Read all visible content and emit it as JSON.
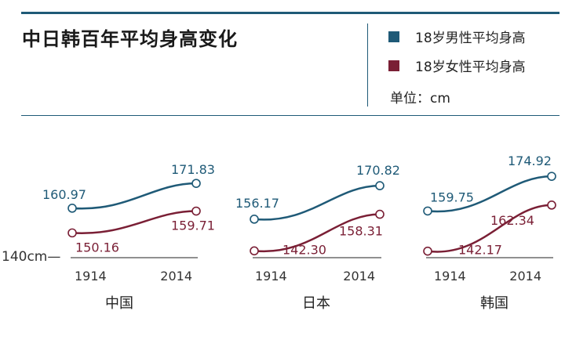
{
  "header": {
    "title": "中日韩百年平均身高变化",
    "legend": [
      {
        "label": "18岁男性平均身高",
        "color": "#1f5a77"
      },
      {
        "label": "18岁女性平均身高",
        "color": "#7a1f35"
      }
    ],
    "unit": "单位：cm"
  },
  "chart_data": {
    "type": "line",
    "title": "中日韩百年平均身高变化",
    "baseline_label": "140cm—",
    "ylim": [
      140,
      176
    ],
    "x": [
      1914,
      2014
    ],
    "x_tick_labels": [
      "1914",
      "2014"
    ],
    "panels": [
      {
        "country": "中国",
        "series": [
          {
            "name": "18岁男性平均身高",
            "values": [
              160.97,
              171.83
            ],
            "labels": [
              "160.97",
              "171.83"
            ]
          },
          {
            "name": "18岁女性平均身高",
            "values": [
              150.16,
              159.71
            ],
            "labels": [
              "150.16",
              "159.71"
            ]
          }
        ]
      },
      {
        "country": "日本",
        "series": [
          {
            "name": "18岁男性平均身高",
            "values": [
              156.17,
              170.82
            ],
            "labels": [
              "156.17",
              "170.82"
            ]
          },
          {
            "name": "18岁女性平均身高",
            "values": [
              142.3,
              158.31
            ],
            "labels": [
              "142.30",
              "158.31"
            ]
          }
        ]
      },
      {
        "country": "韩国",
        "series": [
          {
            "name": "18岁男性平均身高",
            "values": [
              159.75,
              174.92
            ],
            "labels": [
              "159.75",
              "174.92"
            ]
          },
          {
            "name": "18岁女性平均身高",
            "values": [
              142.17,
              162.34
            ],
            "labels": [
              "142.17",
              "162.34"
            ]
          }
        ]
      }
    ]
  }
}
